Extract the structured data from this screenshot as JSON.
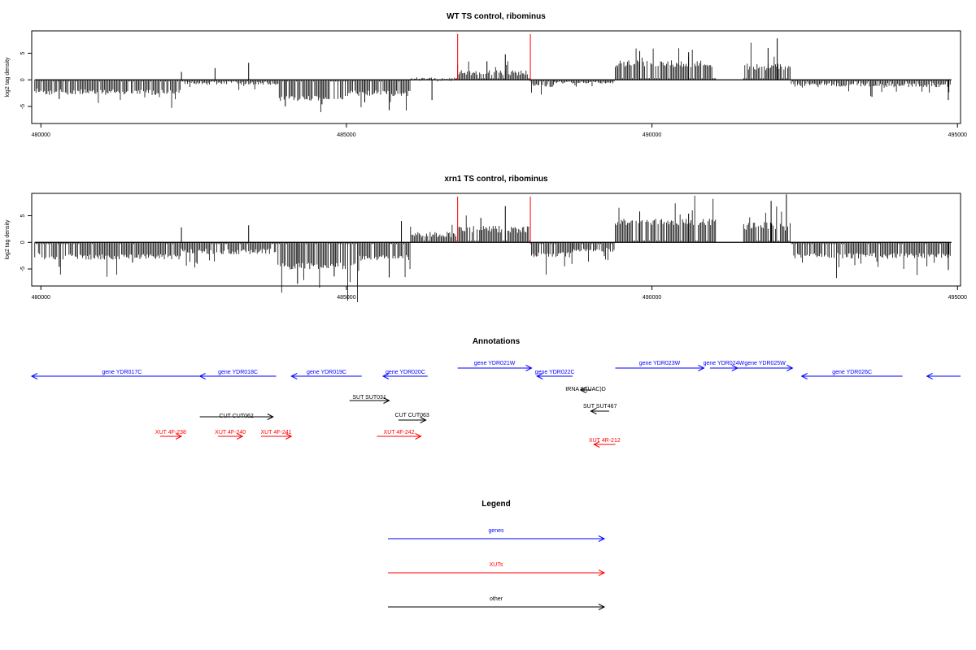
{
  "panels": [
    {
      "title": "WT TS control, ribominus",
      "ylabel": "log2 tag density",
      "xlim": [
        479850,
        495050
      ],
      "ylim": [
        -8.2,
        9.2
      ],
      "x_ticks": [
        480000,
        485000,
        490000,
        495000
      ],
      "y_ticks": [
        -5,
        0,
        5
      ],
      "red_lines_x": [
        486820,
        488010
      ],
      "profile": {
        "type": "bar",
        "bin_step": 20,
        "segments": [
          {
            "x": [
              479900,
              480000
            ],
            "y": [
              -1.5,
              -2.2
            ]
          },
          {
            "x": [
              480000,
              482300
            ],
            "y": [
              -1.8,
              -2.6
            ]
          },
          {
            "x": [
              482300,
              483900
            ],
            "y": [
              -0.3,
              -0.8
            ]
          },
          {
            "x": [
              483900,
              485000
            ],
            "y": [
              -3.0,
              -3.8
            ]
          },
          {
            "x": [
              485000,
              486050
            ],
            "y": [
              -2.0,
              -2.8
            ]
          },
          {
            "x": [
              486050,
              486820
            ],
            "y": [
              -0.2,
              0.3
            ]
          },
          {
            "x": [
              486820,
              488010
            ],
            "y": [
              0.8,
              1.6
            ]
          },
          {
            "x": [
              488010,
              488400
            ],
            "y": [
              -0.8,
              -1.2
            ]
          },
          {
            "x": [
              488400,
              489400
            ],
            "y": [
              -0.3,
              -0.6
            ]
          },
          {
            "x": [
              489400,
              491050
            ],
            "y": [
              2.4,
              3.4
            ]
          },
          {
            "x": [
              491050,
              491500
            ],
            "y": [
              0,
              0
            ]
          },
          {
            "x": [
              491500,
              492280
            ],
            "y": [
              1.8,
              2.8
            ]
          },
          {
            "x": [
              492280,
              494900
            ],
            "y": [
              -0.6,
              -1.2
            ]
          }
        ],
        "spikes": [
          {
            "x": 482300,
            "y": 1.5
          },
          {
            "x": 482850,
            "y": 2.2
          },
          {
            "x": 483400,
            "y": 3.2
          },
          {
            "x": 484000,
            "y": -5.0
          },
          {
            "x": 484600,
            "y": -4.6
          },
          {
            "x": 485700,
            "y": -5.7
          },
          {
            "x": 485300,
            "y": -4.2
          },
          {
            "x": 486400,
            "y": -3.8
          },
          {
            "x": 487600,
            "y": 4.8
          },
          {
            "x": 487300,
            "y": 3.5
          },
          {
            "x": 489800,
            "y": 5.4
          },
          {
            "x": 490600,
            "y": 5.2
          },
          {
            "x": 492050,
            "y": 7.8
          },
          {
            "x": 491900,
            "y": 6.0
          },
          {
            "x": 493600,
            "y": -3.2
          },
          {
            "x": 494850,
            "y": -3.8
          },
          {
            "x": 480300,
            "y": -3.6
          }
        ]
      }
    },
    {
      "title": "xrn1 TS control, ribominus",
      "ylabel": "log2 tag density",
      "xlim": [
        479850,
        495050
      ],
      "ylim": [
        -8.2,
        9.2
      ],
      "x_ticks": [
        480000,
        485000,
        490000,
        495000
      ],
      "y_ticks": [
        -5,
        0,
        5
      ],
      "red_lines_x": [
        486820,
        488010
      ],
      "profile": {
        "type": "bar",
        "bin_step": 20,
        "segments": [
          {
            "x": [
              479900,
              480000
            ],
            "y": [
              -2.0,
              -2.8
            ]
          },
          {
            "x": [
              480000,
              482300
            ],
            "y": [
              -2.2,
              -3.0
            ]
          },
          {
            "x": [
              482300,
              483900
            ],
            "y": [
              -1.2,
              -2.0
            ]
          },
          {
            "x": [
              483900,
              485200
            ],
            "y": [
              -3.8,
              -4.8
            ]
          },
          {
            "x": [
              485200,
              486050
            ],
            "y": [
              -2.4,
              -3.2
            ]
          },
          {
            "x": [
              486050,
              486820
            ],
            "y": [
              1.0,
              1.8
            ]
          },
          {
            "x": [
              486820,
              488010
            ],
            "y": [
              1.8,
              2.8
            ]
          },
          {
            "x": [
              488010,
              488700
            ],
            "y": [
              -1.8,
              -2.6
            ]
          },
          {
            "x": [
              488700,
              489400
            ],
            "y": [
              -1.0,
              -1.6
            ]
          },
          {
            "x": [
              489400,
              491050
            ],
            "y": [
              3.2,
              4.2
            ]
          },
          {
            "x": [
              491050,
              491500
            ],
            "y": [
              0,
              0
            ]
          },
          {
            "x": [
              491500,
              492280
            ],
            "y": [
              2.2,
              3.4
            ]
          },
          {
            "x": [
              492280,
              494900
            ],
            "y": [
              -2.0,
              -2.8
            ]
          }
        ],
        "spikes": [
          {
            "x": 482300,
            "y": 2.8
          },
          {
            "x": 483400,
            "y": 3.2
          },
          {
            "x": 484200,
            "y": -7.8
          },
          {
            "x": 484800,
            "y": -6.4
          },
          {
            "x": 485700,
            "y": -6.6
          },
          {
            "x": 485900,
            "y": 4.0
          },
          {
            "x": 487600,
            "y": 6.8
          },
          {
            "x": 487200,
            "y": 4.6
          },
          {
            "x": 489800,
            "y": 5.8
          },
          {
            "x": 490600,
            "y": 5.4
          },
          {
            "x": 492200,
            "y": 9.0
          },
          {
            "x": 491950,
            "y": 7.8
          },
          {
            "x": 494850,
            "y": -5.2
          },
          {
            "x": 480300,
            "y": -4.6
          },
          {
            "x": 481500,
            "y": -3.8
          }
        ]
      }
    }
  ],
  "annotations": {
    "title": "Annotations",
    "items": [
      {
        "label": "gene YDR017C",
        "category": "genes",
        "strand": "-",
        "start": 479850,
        "end": 482800,
        "row": 1
      },
      {
        "label": "gene YDR018C",
        "category": "genes",
        "strand": "-",
        "start": 482600,
        "end": 483850,
        "row": 1
      },
      {
        "label": "gene YDR019C",
        "category": "genes",
        "strand": "-",
        "start": 484100,
        "end": 485250,
        "row": 1
      },
      {
        "label": "gene YDR020C",
        "category": "genes",
        "strand": "-",
        "start": 485600,
        "end": 486330,
        "row": 1
      },
      {
        "label": "gene YDR021W",
        "category": "genes",
        "strand": "+",
        "start": 486820,
        "end": 488030,
        "row": 0
      },
      {
        "label": "gene YDR022C",
        "category": "genes",
        "strand": "-",
        "start": 488120,
        "end": 488700,
        "row": 1
      },
      {
        "label": "gene YDR023W",
        "category": "genes",
        "strand": "+",
        "start": 489400,
        "end": 490850,
        "row": 0
      },
      {
        "label": "gene YDR024W",
        "category": "genes",
        "strand": "+",
        "start": 490950,
        "end": 491400,
        "row": 0
      },
      {
        "label": "gene YDR025W",
        "category": "genes",
        "strand": "+",
        "start": 491400,
        "end": 492300,
        "row": 0
      },
      {
        "label": "gene YDR026C",
        "category": "genes",
        "strand": "-",
        "start": 492450,
        "end": 494100,
        "row": 1
      },
      {
        "label": "",
        "category": "genes",
        "strand": "-",
        "start": 494500,
        "end": 495050,
        "row": 1
      },
      {
        "label": "tRNA tV(UAC)D",
        "category": "other",
        "strand": "-",
        "start": 488830,
        "end": 489000,
        "row": 2
      },
      {
        "label": "SUT SUT031",
        "category": "other",
        "strand": "+",
        "start": 485050,
        "end": 485700,
        "row": 3
      },
      {
        "label": "SUT SUT467",
        "category": "other",
        "strand": "-",
        "start": 489000,
        "end": 489300,
        "row": 4
      },
      {
        "label": "CUT CUT062",
        "category": "other",
        "strand": "+",
        "start": 482600,
        "end": 483800,
        "row": 5
      },
      {
        "label": "CUT CUT063",
        "category": "other",
        "strand": "+",
        "start": 485850,
        "end": 486300,
        "row": 6
      },
      {
        "label": "XUT 4F-238",
        "category": "XUTs",
        "strand": "+",
        "start": 481950,
        "end": 482300,
        "row": 7
      },
      {
        "label": "XUT 4F-240",
        "category": "XUTs",
        "strand": "+",
        "start": 482900,
        "end": 483300,
        "row": 7
      },
      {
        "label": "XUT 4F-241",
        "category": "XUTs",
        "strand": "+",
        "start": 483600,
        "end": 484100,
        "row": 7
      },
      {
        "label": "XUT 4F-242",
        "category": "XUTs",
        "strand": "+",
        "start": 485500,
        "end": 486220,
        "row": 8
      },
      {
        "label": "XUT 4R-212",
        "category": "XUTs",
        "strand": "-",
        "start": 489050,
        "end": 489400,
        "row": 9
      }
    ]
  },
  "legend": {
    "title": "Legend",
    "entries": [
      {
        "label": "genes",
        "category": "genes"
      },
      {
        "label": "XUTs",
        "category": "XUTs"
      },
      {
        "label": "other",
        "category": "other"
      }
    ]
  },
  "colors": {
    "genes": "#0000ff",
    "XUTs": "#ff0000",
    "other": "#000000",
    "red_marker": "#ff0000",
    "bars": "#000000",
    "axis": "#000000"
  },
  "chart_data": [
    {
      "type": "bar",
      "title": "WT TS control, ribominus",
      "ylabel": "log2 tag density",
      "xlabel": "",
      "xlim": [
        479850,
        495050
      ],
      "ylim": [
        -8.2,
        9.2
      ],
      "grid": false,
      "legend": "none"
    },
    {
      "type": "bar",
      "title": "xrn1 TS control, ribominus",
      "ylabel": "log2 tag density",
      "xlabel": "",
      "xlim": [
        479850,
        495050
      ],
      "ylim": [
        -8.2,
        9.2
      ],
      "grid": false,
      "legend": "none"
    }
  ]
}
